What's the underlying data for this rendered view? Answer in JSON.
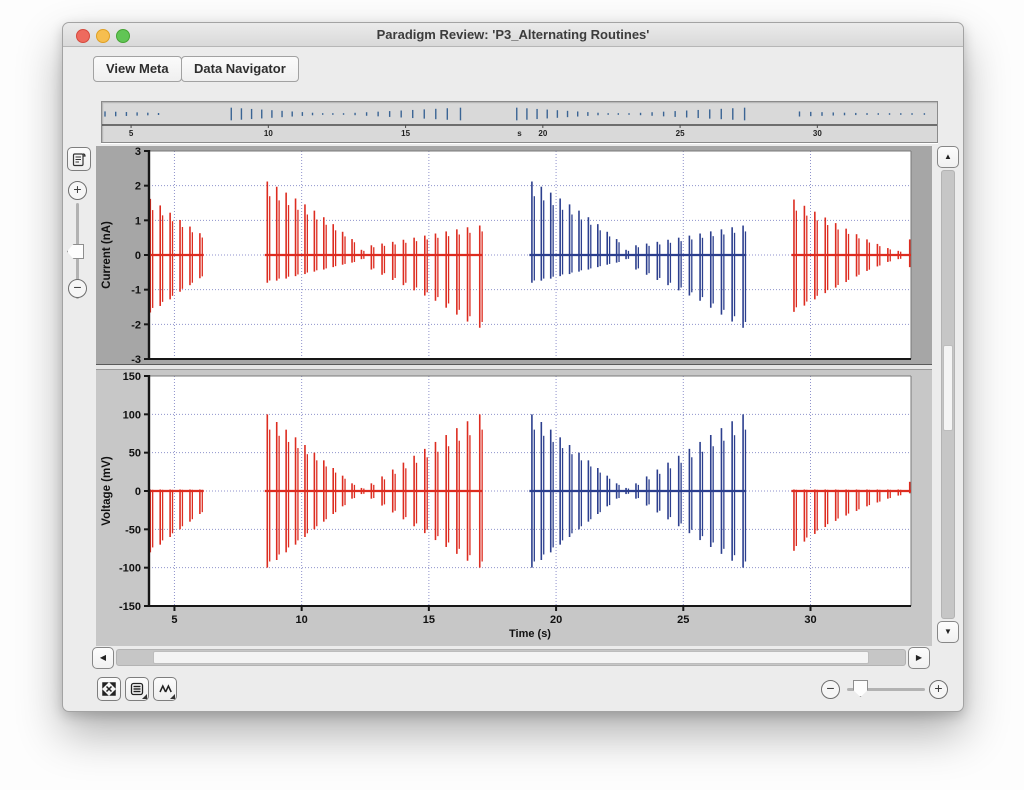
{
  "window": {
    "title": "Paradigm Review: 'P3_Alternating Routines'"
  },
  "toolbar": {
    "view_meta_label": "View Meta",
    "data_navigator_label": "Data Navigator"
  },
  "controls": {
    "zoom_in_label": "+",
    "zoom_out_label": "−",
    "scroll_up_glyph": "▲",
    "scroll_down_glyph": "▼",
    "scroll_left_glyph": "◀",
    "scroll_right_glyph": "▶"
  },
  "colors": {
    "series_red": "#dd2c20",
    "series_blue": "#2c3f8e",
    "timeline_tick": "#3a6494",
    "grid": "#8f92cc",
    "axis": "#161616"
  },
  "chart_data": [
    {
      "id": "timeline",
      "type": "event-ticks",
      "xlim": [
        4.05,
        34.25
      ],
      "xticks": [
        5,
        10,
        15,
        20,
        25,
        30
      ],
      "unit_label": "s",
      "derive_from": "voltage"
    },
    {
      "id": "current",
      "type": "spike-train",
      "ylabel": "Current (nA)",
      "ylim": [
        -3,
        3
      ],
      "yticks": [
        -3,
        -2,
        -1,
        0,
        1,
        2,
        3
      ],
      "xlim": [
        4.0,
        33.95
      ],
      "xticks": [
        5,
        10,
        15,
        20,
        25,
        30
      ],
      "show_x_labels": false,
      "series": [
        {
          "name": "red-channel",
          "color": "#dd2c20",
          "baseline": [
            [
              4.0,
              6.15
            ],
            [
              8.55,
              17.1
            ],
            [
              29.25,
              33.95
            ]
          ],
          "events": [
            [
              4.05,
              1.62,
              -1.66
            ],
            [
              4.44,
              1.43,
              -1.47
            ],
            [
              4.83,
              1.22,
              -1.28
            ],
            [
              5.22,
              1.01,
              -1.06
            ],
            [
              5.61,
              0.82,
              -0.87
            ],
            [
              6.0,
              0.63,
              -0.67
            ],
            [
              8.65,
              2.12,
              -0.8
            ],
            [
              9.02,
              1.97,
              -0.74
            ],
            [
              9.39,
              1.8,
              -0.68
            ],
            [
              9.76,
              1.63,
              -0.61
            ],
            [
              10.13,
              1.46,
              -0.55
            ],
            [
              10.5,
              1.28,
              -0.48
            ],
            [
              10.87,
              1.09,
              -0.42
            ],
            [
              11.24,
              0.89,
              -0.35
            ],
            [
              11.61,
              0.67,
              -0.28
            ],
            [
              11.98,
              0.46,
              -0.22
            ],
            [
              12.35,
              0.15,
              -0.12
            ],
            [
              12.74,
              0.28,
              -0.42
            ],
            [
              13.16,
              0.33,
              -0.57
            ],
            [
              13.58,
              0.38,
              -0.72
            ],
            [
              14.0,
              0.44,
              -0.87
            ],
            [
              14.42,
              0.5,
              -1.02
            ],
            [
              14.84,
              0.56,
              -1.17
            ],
            [
              15.26,
              0.62,
              -1.32
            ],
            [
              15.68,
              0.68,
              -1.52
            ],
            [
              16.1,
              0.74,
              -1.72
            ],
            [
              16.52,
              0.8,
              -1.92
            ],
            [
              17.0,
              0.85,
              -2.1
            ],
            [
              29.35,
              1.6,
              -1.64
            ],
            [
              29.76,
              1.42,
              -1.46
            ],
            [
              30.17,
              1.25,
              -1.28
            ],
            [
              30.58,
              1.08,
              -1.1
            ],
            [
              30.99,
              0.92,
              -0.94
            ],
            [
              31.4,
              0.76,
              -0.78
            ],
            [
              31.81,
              0.6,
              -0.62
            ],
            [
              32.22,
              0.45,
              -0.46
            ],
            [
              32.63,
              0.32,
              -0.33
            ],
            [
              33.04,
              0.2,
              -0.2
            ],
            [
              33.45,
              0.12,
              -0.12
            ],
            [
              33.9,
              0.45,
              -0.35
            ]
          ]
        },
        {
          "name": "blue-channel",
          "color": "#2c3f8e",
          "baseline": [
            [
              18.95,
              27.45
            ]
          ],
          "events": [
            [
              19.05,
              2.12,
              -0.8
            ],
            [
              19.42,
              1.97,
              -0.74
            ],
            [
              19.79,
              1.8,
              -0.68
            ],
            [
              20.16,
              1.63,
              -0.61
            ],
            [
              20.53,
              1.46,
              -0.55
            ],
            [
              20.9,
              1.28,
              -0.48
            ],
            [
              21.27,
              1.09,
              -0.42
            ],
            [
              21.64,
              0.89,
              -0.35
            ],
            [
              22.01,
              0.67,
              -0.28
            ],
            [
              22.38,
              0.46,
              -0.22
            ],
            [
              22.75,
              0.15,
              -0.12
            ],
            [
              23.14,
              0.28,
              -0.42
            ],
            [
              23.56,
              0.33,
              -0.57
            ],
            [
              23.98,
              0.38,
              -0.72
            ],
            [
              24.4,
              0.44,
              -0.87
            ],
            [
              24.82,
              0.5,
              -1.02
            ],
            [
              25.24,
              0.56,
              -1.17
            ],
            [
              25.66,
              0.62,
              -1.32
            ],
            [
              26.08,
              0.68,
              -1.52
            ],
            [
              26.5,
              0.74,
              -1.72
            ],
            [
              26.92,
              0.8,
              -1.92
            ],
            [
              27.35,
              0.85,
              -2.1
            ]
          ]
        }
      ]
    },
    {
      "id": "voltage",
      "type": "spike-train",
      "ylabel": "Voltage (mV)",
      "xlabel": "Time (s)",
      "ylim": [
        -150,
        150
      ],
      "yticks": [
        -150,
        -100,
        -50,
        0,
        50,
        100,
        150
      ],
      "xlim": [
        4.0,
        33.95
      ],
      "xticks": [
        5,
        10,
        15,
        20,
        25,
        30
      ],
      "show_x_labels": true,
      "series": [
        {
          "name": "red-channel",
          "color": "#dd2c20",
          "baseline": [
            [
              4.0,
              6.15
            ],
            [
              8.55,
              17.1
            ],
            [
              29.25,
              33.95
            ]
          ],
          "events": [
            [
              4.05,
              2,
              -80
            ],
            [
              4.44,
              2,
              -70
            ],
            [
              4.83,
              2,
              -60
            ],
            [
              5.22,
              2,
              -50
            ],
            [
              5.61,
              2,
              -40
            ],
            [
              6.0,
              2,
              -30
            ],
            [
              8.65,
              100,
              -100
            ],
            [
              9.02,
              90,
              -90
            ],
            [
              9.39,
              80,
              -80
            ],
            [
              9.76,
              70,
              -70
            ],
            [
              10.13,
              60,
              -60
            ],
            [
              10.5,
              50,
              -50
            ],
            [
              10.87,
              40,
              -40
            ],
            [
              11.24,
              30,
              -30
            ],
            [
              11.61,
              20,
              -20
            ],
            [
              11.98,
              10,
              -10
            ],
            [
              12.35,
              4,
              -4
            ],
            [
              12.74,
              10,
              -10
            ],
            [
              13.16,
              19,
              -19
            ],
            [
              13.58,
              28,
              -28
            ],
            [
              14.0,
              37,
              -37
            ],
            [
              14.42,
              46,
              -46
            ],
            [
              14.84,
              55,
              -55
            ],
            [
              15.26,
              64,
              -64
            ],
            [
              15.68,
              73,
              -73
            ],
            [
              16.1,
              82,
              -82
            ],
            [
              16.52,
              91,
              -91
            ],
            [
              17.0,
              100,
              -100
            ],
            [
              29.35,
              2,
              -78
            ],
            [
              29.76,
              2,
              -66
            ],
            [
              30.17,
              2,
              -56
            ],
            [
              30.58,
              2,
              -47
            ],
            [
              30.99,
              2,
              -39
            ],
            [
              31.4,
              2,
              -32
            ],
            [
              31.81,
              2,
              -26
            ],
            [
              32.22,
              2,
              -20
            ],
            [
              32.63,
              2,
              -15
            ],
            [
              33.04,
              2,
              -10
            ],
            [
              33.45,
              2,
              -6
            ],
            [
              33.9,
              12,
              -3
            ]
          ]
        },
        {
          "name": "blue-channel",
          "color": "#2c3f8e",
          "baseline": [
            [
              18.95,
              27.45
            ]
          ],
          "events": [
            [
              19.05,
              100,
              -100
            ],
            [
              19.42,
              90,
              -90
            ],
            [
              19.79,
              80,
              -80
            ],
            [
              20.16,
              70,
              -70
            ],
            [
              20.53,
              60,
              -60
            ],
            [
              20.9,
              50,
              -50
            ],
            [
              21.27,
              40,
              -40
            ],
            [
              21.64,
              30,
              -30
            ],
            [
              22.01,
              20,
              -20
            ],
            [
              22.38,
              10,
              -10
            ],
            [
              22.75,
              4,
              -4
            ],
            [
              23.14,
              10,
              -10
            ],
            [
              23.56,
              19,
              -19
            ],
            [
              23.98,
              28,
              -28
            ],
            [
              24.4,
              37,
              -37
            ],
            [
              24.82,
              46,
              -46
            ],
            [
              25.24,
              55,
              -55
            ],
            [
              25.66,
              64,
              -64
            ],
            [
              26.08,
              73,
              -73
            ],
            [
              26.5,
              82,
              -82
            ],
            [
              26.92,
              91,
              -91
            ],
            [
              27.35,
              100,
              -100
            ]
          ]
        }
      ]
    }
  ]
}
